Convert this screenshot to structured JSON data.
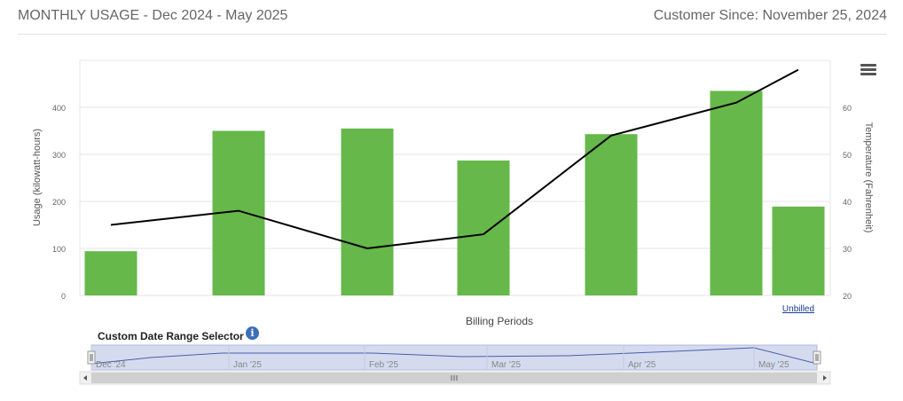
{
  "header": {
    "title": "MONTHLY USAGE - Dec 2024 - May 2025",
    "customer_since": "Customer Since: November 25, 2024"
  },
  "navigator": {
    "title": "Custom Date Range Selector",
    "info_icon": "i",
    "labels": [
      "Dec '24",
      "Jan '25",
      "Feb '25",
      "Mar '25",
      "Apr '25",
      "May '25"
    ]
  },
  "colors": {
    "bar": "#66b84a",
    "line": "#000000",
    "grid": "#e6e6e6",
    "navigator_fill": "#d4dbef",
    "navigator_line": "#4a5ea8"
  },
  "chart_data": {
    "type": "bar",
    "title": "",
    "xlabel": "Billing Periods",
    "ylabel": "Usage (kilowatt-hours)",
    "y2label": "Temperature (Fahrenheit)",
    "ylim": [
      0,
      500
    ],
    "y_ticks": [
      0,
      100,
      200,
      300,
      400
    ],
    "y2lim": [
      20,
      70
    ],
    "y2_ticks": [
      20,
      30,
      40,
      50,
      60
    ],
    "grid": true,
    "categories": [
      "",
      "",
      "",
      "",
      "",
      "",
      "Unbilled"
    ],
    "series": [
      {
        "type": "bar",
        "values": [
          94,
          350,
          355,
          287,
          343,
          435,
          189
        ]
      },
      {
        "type": "line",
        "values": [
          35,
          38,
          30,
          33,
          54,
          61,
          68
        ]
      }
    ]
  }
}
